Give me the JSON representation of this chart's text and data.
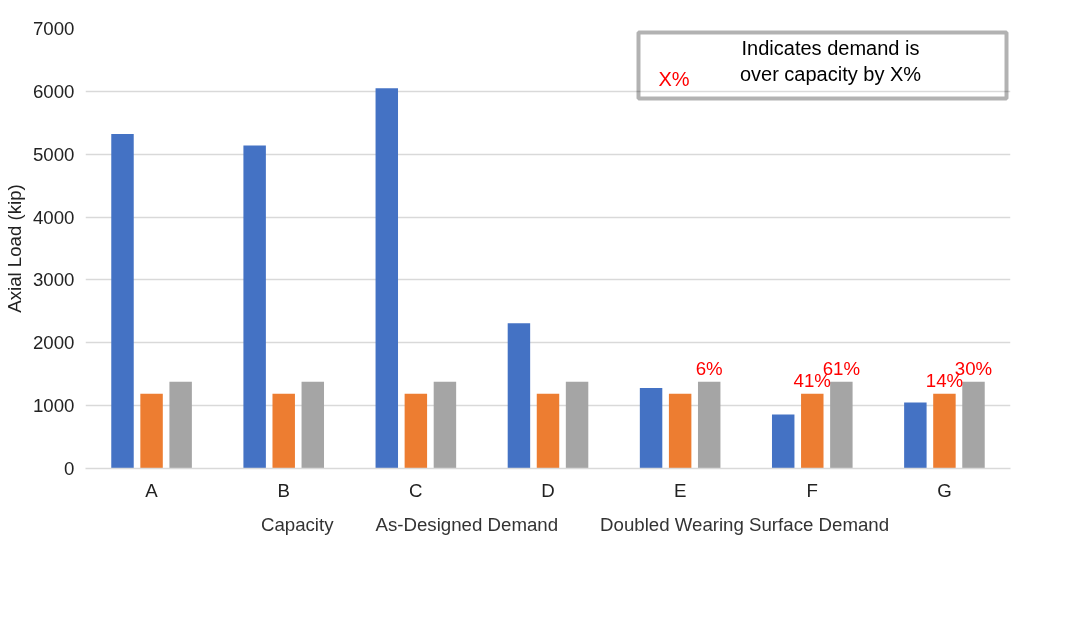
{
  "chart_data": {
    "type": "bar",
    "ylabel": "Axial Load (kip)",
    "categories": [
      "A",
      "B",
      "C",
      "D",
      "E",
      "F",
      "G"
    ],
    "series": [
      {
        "name": "Capacity",
        "color": "#4472c4",
        "values": [
          5320,
          5140,
          6050,
          2310,
          1280,
          860,
          1050
        ]
      },
      {
        "name": "As-Designed Demand",
        "color": "#ed7d31",
        "values": [
          1190,
          1190,
          1190,
          1190,
          1190,
          1190,
          1190
        ]
      },
      {
        "name": "Doubled Wearing Surface Demand",
        "color": "#a5a5a5",
        "values": [
          1380,
          1380,
          1380,
          1380,
          1380,
          1380,
          1380
        ]
      }
    ],
    "ylim": [
      0,
      7000
    ],
    "yticks": [
      0,
      1000,
      2000,
      3000,
      4000,
      5000,
      6000,
      7000
    ],
    "grid": "y",
    "legend": "bottom",
    "annotations": [
      "X%",
      "Indicates demand is\nover capacity by X%",
      "6%",
      "41%",
      "61%",
      "14%",
      "30%"
    ]
  }
}
